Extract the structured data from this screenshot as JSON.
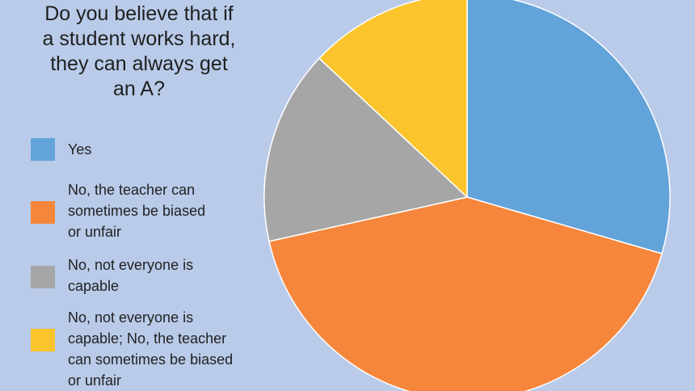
{
  "chart_data": {
    "type": "pie",
    "title_lines": [
      "Do you believe that if",
      "a student works hard,",
      "they can always get",
      "an A?"
    ],
    "start_angle_deg": 0,
    "direction": "clockwise",
    "legend_placement": "left",
    "slices": [
      {
        "label_lines": [
          "Yes"
        ],
        "value": 29.5,
        "color": "#62a3d9"
      },
      {
        "label_lines": [
          "No, the teacher can",
          "sometimes be biased",
          "or unfair"
        ],
        "value": 42.0,
        "color": "#f5863b"
      },
      {
        "label_lines": [
          "No, not everyone is",
          "capable"
        ],
        "value": 15.5,
        "color": "#a6a6a6"
      },
      {
        "label_lines": [
          "No, not everyone is",
          "capable; No, the teacher",
          "can sometimes be biased",
          "or unfair"
        ],
        "value": 13.0,
        "color": "#fcc42c"
      }
    ]
  }
}
